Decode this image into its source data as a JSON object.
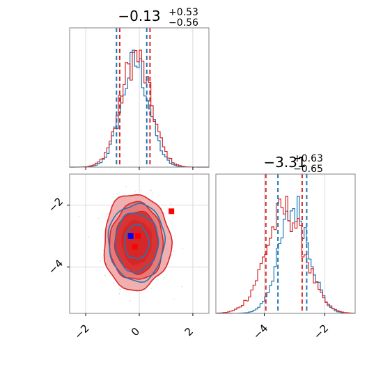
{
  "colors": {
    "blue": "#1f77b4",
    "red": "#d62728",
    "red_fill_light": "#f0a6a6",
    "red_fill_mid": "#e57373",
    "grid": "#d9d9d9",
    "frame": "#808080",
    "scatter_gray": "#dddddd",
    "marker_blue": "#0000ff",
    "marker_red": "#ff0000"
  },
  "chart_data": [
    {
      "type": "histogram",
      "panel": "top-left",
      "title": {
        "main": "−0.13",
        "sup": "+0.53",
        "sub": "−0.56"
      },
      "xlim": [
        -2.6,
        2.6
      ],
      "grid": true,
      "x_tick_labels_visible": false,
      "quantile_lines": {
        "blue": [
          -0.85,
          0.28
        ],
        "red": [
          -0.73,
          0.4
        ]
      },
      "series": [
        {
          "color": "blue",
          "peak": -0.15,
          "width": 0.52,
          "bins": 60
        },
        {
          "color": "red",
          "peak": -0.13,
          "width": 0.56,
          "bins": 60
        }
      ]
    },
    {
      "type": "contour",
      "panel": "bottom-left",
      "xlim": [
        -2.6,
        2.6
      ],
      "ylim": [
        -5.5,
        -1.0
      ],
      "xticks": [
        -2,
        0,
        2
      ],
      "yticks": [
        -2,
        -4
      ],
      "x_tick_labels": [
        "−2",
        "0",
        "2"
      ],
      "y_tick_labels": [
        "−2",
        "−4"
      ],
      "grid": true,
      "contours": {
        "red_filled_levels": 4,
        "blue_line_levels": 3,
        "center": [
          -0.1,
          -3.2
        ]
      },
      "markers": [
        {
          "color": "marker_red",
          "x": 1.2,
          "y": -2.2
        },
        {
          "color": "marker_blue",
          "x": -0.32,
          "y": -3.0
        },
        {
          "color": "marker_red",
          "x": -0.05,
          "y": -3.0
        },
        {
          "color": "marker_red",
          "x": -0.17,
          "y": -3.35
        }
      ]
    },
    {
      "type": "histogram",
      "panel": "bottom-right",
      "title": {
        "main": "−3.31",
        "sup": "+0.63",
        "sub": "−0.65"
      },
      "xlim": [
        -5.6,
        -1.0
      ],
      "xticks": [
        -4,
        -2
      ],
      "x_tick_labels": [
        "−4",
        "−2"
      ],
      "grid": true,
      "quantile_lines": {
        "blue": [
          -3.55,
          -2.6
        ],
        "red": [
          -3.95,
          -2.75
        ]
      },
      "series": [
        {
          "color": "blue",
          "peak": -3.0,
          "width": 0.5,
          "bins": 60
        },
        {
          "color": "red",
          "peak": -3.31,
          "width": 0.64,
          "bins": 60
        }
      ]
    }
  ]
}
